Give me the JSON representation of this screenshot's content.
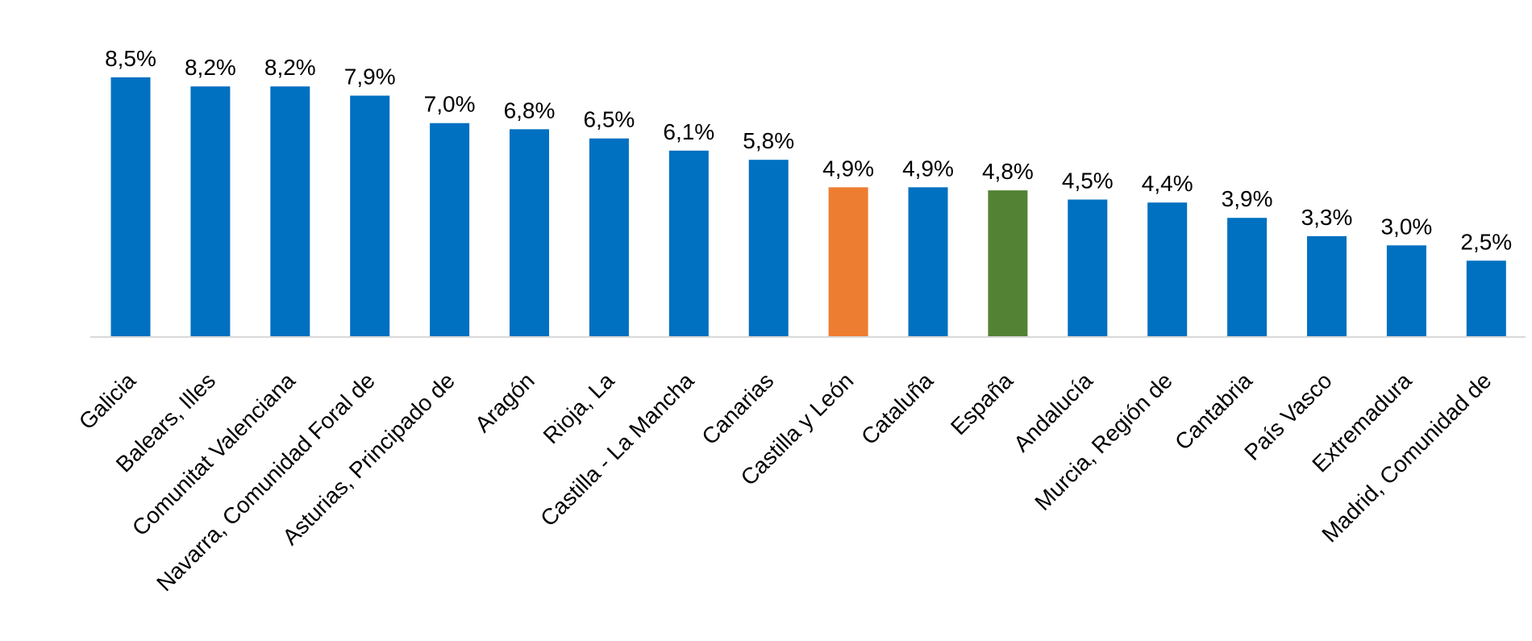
{
  "chart_data": {
    "type": "bar",
    "title": "",
    "xlabel": "",
    "ylabel": "",
    "ylim": [
      0,
      9
    ],
    "grid": false,
    "legend": "none",
    "categories": [
      "Galicia",
      "Balears, Illes",
      "Comunitat Valenciana",
      "Navarra, Comunidad Foral de",
      "Asturias, Principado de",
      "Aragón",
      "Rioja, La",
      "Castilla - La Mancha",
      "Canarias",
      "Castilla y León",
      "Cataluña",
      "España",
      "Andalucía",
      "Murcia, Región de",
      "Cantabria",
      "País Vasco",
      "Extremadura",
      "Madrid, Comunidad de"
    ],
    "values": [
      8.5,
      8.2,
      8.2,
      7.9,
      7.0,
      6.8,
      6.5,
      6.1,
      5.8,
      4.9,
      4.9,
      4.8,
      4.5,
      4.4,
      3.9,
      3.3,
      3.0,
      2.5
    ],
    "value_labels": [
      "8,5%",
      "8,2%",
      "8,2%",
      "7,9%",
      "7,0%",
      "6,8%",
      "6,5%",
      "6,1%",
      "5,8%",
      "4,9%",
      "4,9%",
      "4,8%",
      "4,5%",
      "4,4%",
      "3,9%",
      "3,3%",
      "3,0%",
      "2,5%"
    ],
    "colors": {
      "default": "#0070C0",
      "highlight": "#ED7D31",
      "reference": "#548235",
      "axis": "#D9D9D9"
    },
    "highlight_category": "Castilla y León",
    "reference_category": "España"
  }
}
